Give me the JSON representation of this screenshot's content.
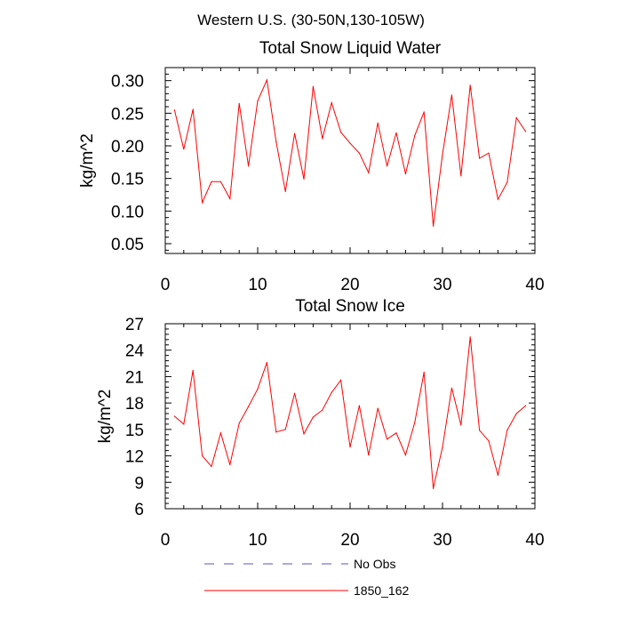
{
  "figure_title": "Western U.S. (30-50N,130-105W)",
  "legend": {
    "items": [
      {
        "label": "No Obs",
        "color": "#5555bb",
        "dash": true
      },
      {
        "label": "1850_162",
        "color": "#ff0000",
        "dash": false
      }
    ]
  },
  "chart_data": [
    {
      "type": "line",
      "title": "Total Snow Liquid Water",
      "xlabel": "",
      "ylabel": "kg/m^2",
      "xlim": [
        0,
        40
      ],
      "ylim": [
        0.035,
        0.32
      ],
      "xticks": [
        0,
        10,
        20,
        30,
        40
      ],
      "xtick_labels": [
        "0",
        "10",
        "20",
        "30",
        "40"
      ],
      "yticks": [
        0.05,
        0.1,
        0.15,
        0.2,
        0.25,
        0.3
      ],
      "ytick_labels": [
        "0.05",
        "0.10",
        "0.15",
        "0.20",
        "0.25",
        "0.30"
      ],
      "grid": false,
      "series": [
        {
          "name": "1850_162",
          "color": "#ff0000",
          "x": [
            1,
            2,
            3,
            4,
            5,
            6,
            7,
            8,
            9,
            10,
            11,
            12,
            13,
            14,
            15,
            16,
            17,
            18,
            19,
            20,
            21,
            22,
            23,
            24,
            25,
            26,
            27,
            28,
            29,
            30,
            31,
            32,
            33,
            34,
            35,
            36,
            37,
            38,
            39
          ],
          "values": [
            0.255,
            0.195,
            0.256,
            0.113,
            0.145,
            0.145,
            0.119,
            0.265,
            0.169,
            0.269,
            0.301,
            0.206,
            0.13,
            0.219,
            0.149,
            0.291,
            0.211,
            0.266,
            0.221,
            0.204,
            0.189,
            0.159,
            0.235,
            0.169,
            0.22,
            0.157,
            0.216,
            0.252,
            0.077,
            0.187,
            0.278,
            0.154,
            0.293,
            0.181,
            0.189,
            0.118,
            0.144,
            0.243,
            0.222
          ]
        }
      ]
    },
    {
      "type": "line",
      "title": "Total Snow Ice",
      "xlabel": "",
      "ylabel": "kg/m^2",
      "xlim": [
        0,
        40
      ],
      "ylim": [
        6,
        27
      ],
      "xticks": [
        0,
        10,
        20,
        30,
        40
      ],
      "xtick_labels": [
        "0",
        "10",
        "20",
        "30",
        "40"
      ],
      "yticks": [
        6,
        9,
        12,
        15,
        18,
        21,
        24,
        27
      ],
      "ytick_labels": [
        "6",
        "9",
        "12",
        "15",
        "18",
        "21",
        "24",
        "27"
      ],
      "grid": false,
      "series": [
        {
          "name": "1850_162",
          "color": "#ff0000",
          "x": [
            1,
            2,
            3,
            4,
            5,
            6,
            7,
            8,
            9,
            10,
            11,
            12,
            13,
            14,
            15,
            16,
            17,
            18,
            19,
            20,
            21,
            22,
            23,
            24,
            25,
            26,
            27,
            28,
            29,
            30,
            31,
            32,
            33,
            34,
            35,
            36,
            37,
            38,
            39
          ],
          "values": [
            16.5,
            15.6,
            21.7,
            12.0,
            10.8,
            14.6,
            11.0,
            15.7,
            17.6,
            19.6,
            22.6,
            14.7,
            15.0,
            19.1,
            14.5,
            16.4,
            17.2,
            19.2,
            20.6,
            13.0,
            17.7,
            12.1,
            17.4,
            13.9,
            14.6,
            12.1,
            15.8,
            21.5,
            8.3,
            13.0,
            19.7,
            15.5,
            25.5,
            14.9,
            13.7,
            9.8,
            14.9,
            16.8,
            17.7
          ]
        }
      ]
    }
  ]
}
